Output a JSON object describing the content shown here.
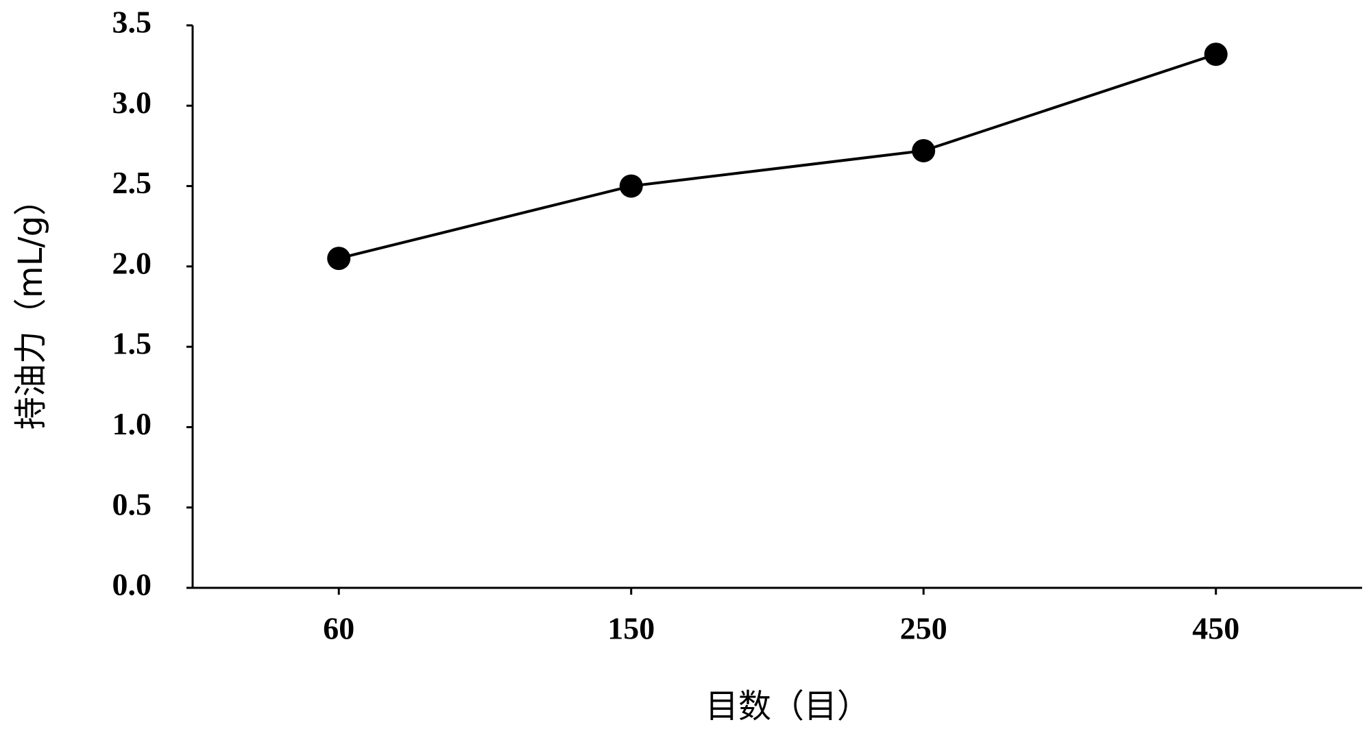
{
  "chart_data": {
    "type": "line",
    "x_label": "目数（目）",
    "y_label": "持油力（mL/g）",
    "categories": [
      "60",
      "150",
      "250",
      "450"
    ],
    "values": [
      2.05,
      2.5,
      2.72,
      3.32
    ],
    "color": "#000000",
    "ylim": [
      0,
      3.5
    ],
    "yticks": [
      {
        "value": 0,
        "label": "0.0"
      },
      0.5,
      {
        "value": 1,
        "label": "1.0"
      },
      1.5,
      {
        "value": 2,
        "label": "2.0"
      },
      2.5,
      {
        "value": 3,
        "label": "3.0"
      },
      3.5
    ],
    "grid": false
  }
}
